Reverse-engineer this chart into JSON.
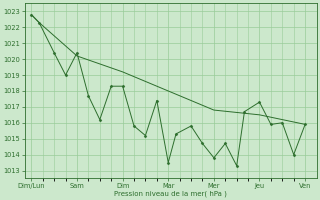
{
  "background_color": "#cce8cc",
  "grid_color": "#99cc99",
  "line_color": "#2d6e2d",
  "marker_color": "#2d6e2d",
  "xlabel": "Pression niveau de la mer( hPa )",
  "ylim": [
    1012.5,
    1023.5
  ],
  "yticks": [
    1013,
    1014,
    1015,
    1016,
    1017,
    1018,
    1019,
    1020,
    1021,
    1022,
    1023
  ],
  "x_tick_labels": [
    "Dim/Lun",
    "Sam",
    "Dim",
    "Mar",
    "Mer",
    "Jeu",
    "Ven"
  ],
  "x_detail": [
    0.0,
    0.17,
    0.5,
    0.75,
    1.0,
    1.25,
    1.5,
    1.75,
    2.0,
    2.25,
    2.5,
    2.75,
    3.0,
    3.17,
    3.5,
    3.75,
    4.0,
    4.25,
    4.5,
    4.67,
    5.0,
    5.25,
    5.5,
    5.75,
    6.0
  ],
  "y_detail": [
    1022.8,
    1022.3,
    1020.4,
    1019.0,
    1020.4,
    1017.7,
    1016.2,
    1018.3,
    1018.3,
    1015.8,
    1015.2,
    1017.4,
    1013.5,
    1015.3,
    1015.8,
    1014.7,
    1013.8,
    1014.7,
    1013.3,
    1016.7,
    1017.3,
    1015.9,
    1016.0,
    1014.0,
    1015.9
  ],
  "x_smooth": [
    0.0,
    0.17,
    1.0,
    2.0,
    3.0,
    4.0,
    5.0,
    6.0
  ],
  "y_smooth": [
    1022.8,
    1022.3,
    1020.2,
    1019.2,
    1018.0,
    1016.8,
    1016.5,
    1015.9
  ],
  "x_minor": [
    0.0,
    0.25,
    0.5,
    0.75,
    1.0,
    1.25,
    1.5,
    1.75,
    2.0,
    2.25,
    2.5,
    2.75,
    3.0,
    3.25,
    3.5,
    3.75,
    4.0,
    4.25,
    4.5,
    4.75,
    5.0,
    5.25,
    5.5,
    5.75,
    6.0
  ]
}
